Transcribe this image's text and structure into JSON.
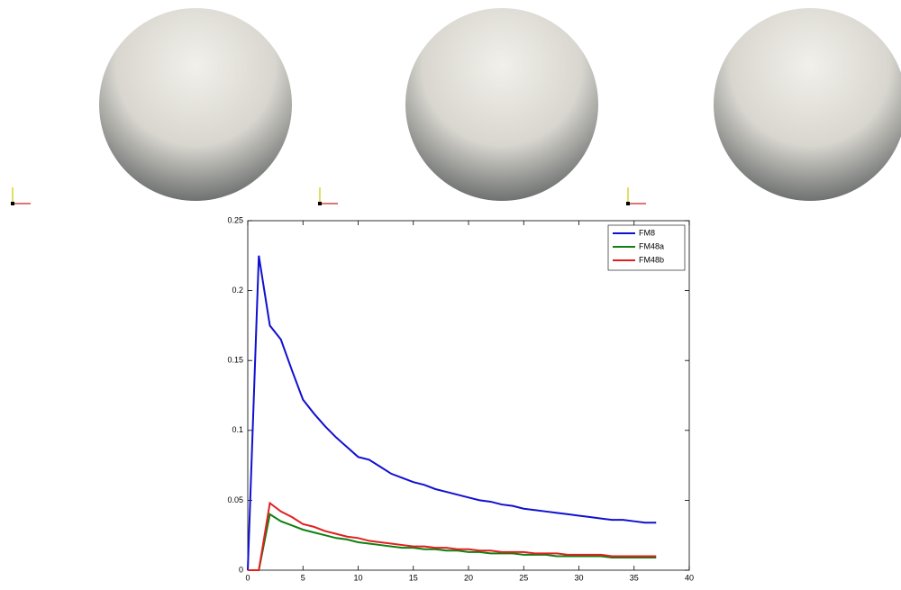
{
  "chart_data": {
    "type": "line",
    "x": [
      0,
      1,
      2,
      3,
      4,
      5,
      6,
      7,
      8,
      9,
      10,
      11,
      12,
      13,
      14,
      15,
      16,
      17,
      18,
      19,
      20,
      21,
      22,
      23,
      24,
      25,
      26,
      27,
      28,
      29,
      30,
      31,
      32,
      33,
      34,
      35,
      36,
      37
    ],
    "series": [
      {
        "name": "FM8",
        "color": "#1010d0",
        "values": [
          0,
          0.225,
          0.175,
          0.165,
          0.143,
          0.122,
          0.112,
          0.103,
          0.095,
          0.088,
          0.081,
          0.079,
          0.074,
          0.069,
          0.066,
          0.063,
          0.061,
          0.058,
          0.056,
          0.054,
          0.052,
          0.05,
          0.049,
          0.047,
          0.046,
          0.044,
          0.043,
          0.042,
          0.041,
          0.04,
          0.039,
          0.038,
          0.037,
          0.036,
          0.036,
          0.035,
          0.034,
          0.034
        ]
      },
      {
        "name": "FM48a",
        "color": "#108010",
        "values": [
          0,
          0,
          0.04,
          0.035,
          0.032,
          0.029,
          0.027,
          0.025,
          0.023,
          0.022,
          0.02,
          0.019,
          0.018,
          0.017,
          0.016,
          0.016,
          0.015,
          0.015,
          0.014,
          0.014,
          0.013,
          0.013,
          0.012,
          0.012,
          0.012,
          0.011,
          0.011,
          0.011,
          0.01,
          0.01,
          0.01,
          0.01,
          0.01,
          0.009,
          0.009,
          0.009,
          0.009,
          0.009
        ]
      },
      {
        "name": "FM48b",
        "color": "#e02020",
        "values": [
          0,
          0,
          0.048,
          0.042,
          0.038,
          0.033,
          0.031,
          0.028,
          0.026,
          0.024,
          0.023,
          0.021,
          0.02,
          0.019,
          0.018,
          0.017,
          0.017,
          0.016,
          0.016,
          0.015,
          0.015,
          0.014,
          0.014,
          0.013,
          0.013,
          0.013,
          0.012,
          0.012,
          0.012,
          0.011,
          0.011,
          0.011,
          0.011,
          0.01,
          0.01,
          0.01,
          0.01,
          0.01
        ]
      }
    ],
    "xlim": [
      0,
      40
    ],
    "xticks": [
      0,
      5,
      10,
      15,
      20,
      25,
      30,
      35,
      40
    ],
    "ylim": [
      0,
      0.25
    ],
    "yticks": [
      0,
      0.05,
      0.1,
      0.15,
      0.2,
      0.25
    ],
    "legend": "upper right"
  }
}
